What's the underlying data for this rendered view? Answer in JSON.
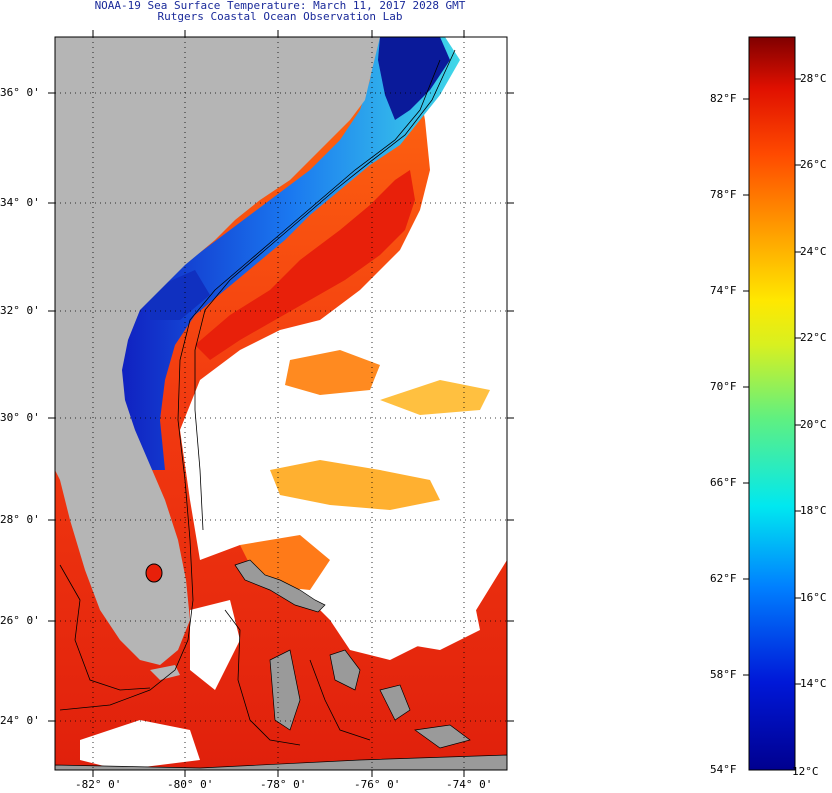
{
  "header": {
    "title": "NOAA-19 Sea Surface Temperature:  March 11, 2017 2028 GMT",
    "subtitle": "Rutgers Coastal Ocean Observation Lab"
  },
  "map": {
    "lat_labels": [
      "36° 0'",
      "34° 0'",
      "32° 0'",
      "30° 0'",
      "28° 0'",
      "26° 0'",
      "24° 0'"
    ],
    "lon_labels": [
      "-82° 0'",
      "-80° 0'",
      "-78° 0'",
      "-76° 0'",
      "-74° 0'"
    ],
    "colors": {
      "land": "#b5b5b5",
      "cloud": "#ffffff",
      "cold": "#0a1a9a",
      "warm": "#e8200a"
    }
  },
  "colorbar": {
    "min_f": "54°F",
    "min_c": "12°C",
    "fahrenheit_labels": [
      "82°F",
      "78°F",
      "74°F",
      "70°F",
      "66°F",
      "62°F",
      "58°F"
    ],
    "celsius_labels": [
      "28°C",
      "26°C",
      "24°C",
      "22°C",
      "20°C",
      "18°C",
      "16°C",
      "14°C"
    ]
  }
}
